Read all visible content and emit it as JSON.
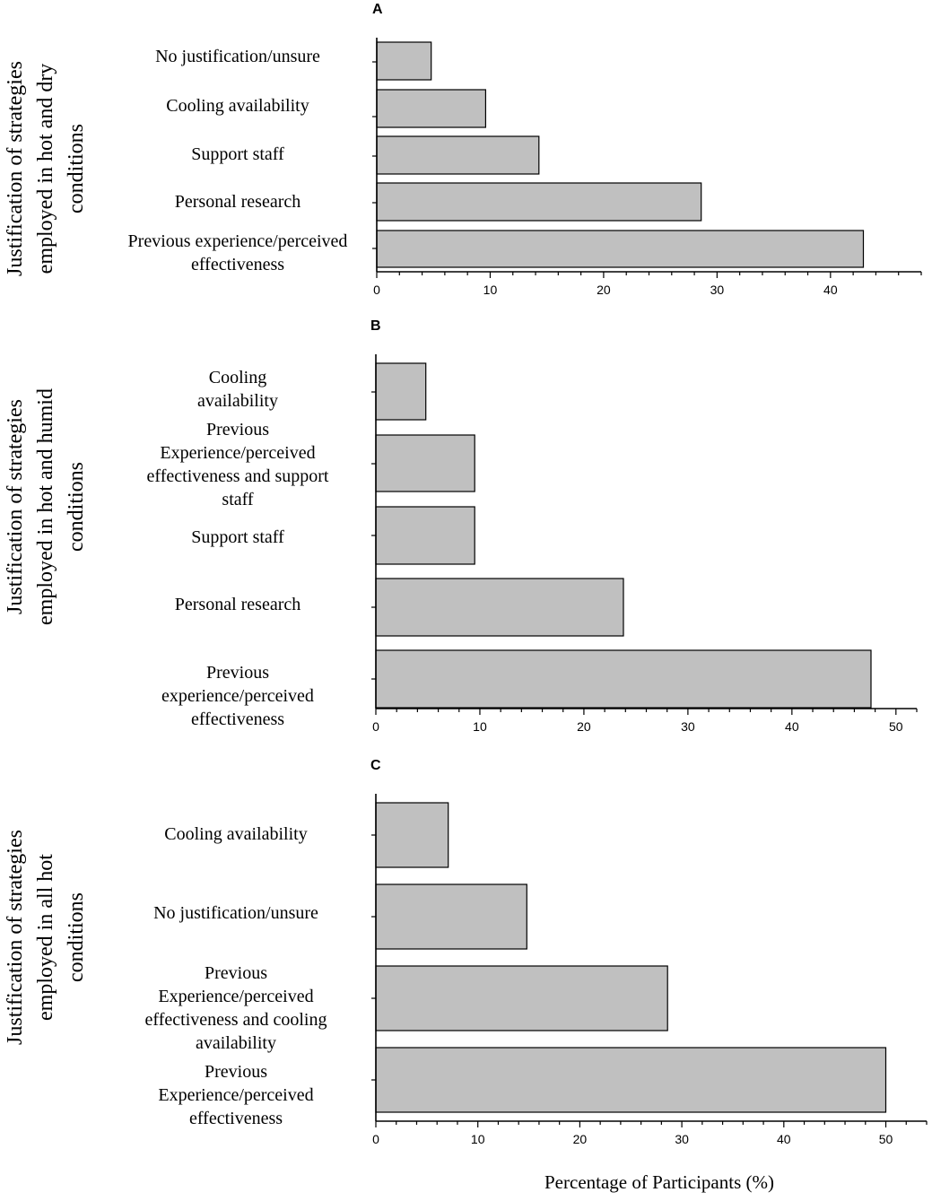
{
  "x_axis_label": "Percentage of Participants (%)",
  "chart_data": [
    {
      "type": "bar",
      "orientation": "horizontal",
      "panel_label": "A",
      "ylabel": [
        "Justification of strategies",
        "employed in  hot and dry",
        "conditions"
      ],
      "categories": [
        [
          "No justification/unsure"
        ],
        [
          "Cooling availability"
        ],
        [
          "Support staff"
        ],
        [
          "Personal research"
        ],
        [
          "Previous experience/perceived",
          "effectiveness"
        ]
      ],
      "values": [
        4.8,
        9.6,
        14.3,
        28.6,
        42.9
      ],
      "xlim": [
        0,
        48
      ],
      "xticks": [
        0,
        10,
        20,
        30,
        40
      ]
    },
    {
      "type": "bar",
      "orientation": "horizontal",
      "panel_label": "B",
      "ylabel": [
        "Justification of strategies",
        "employed in  hot and humid",
        "conditions"
      ],
      "categories": [
        [
          "Cooling",
          "availability"
        ],
        [
          "Previous",
          "Experience/perceived",
          "effectiveness and support",
          "staff"
        ],
        [
          "Support staff"
        ],
        [
          "Personal research"
        ],
        [
          "Previous",
          "experience/perceived",
          "effectiveness"
        ]
      ],
      "values": [
        4.8,
        9.5,
        9.5,
        23.8,
        47.6
      ],
      "xlim": [
        0,
        52
      ],
      "xticks": [
        0,
        10,
        20,
        30,
        40,
        50
      ]
    },
    {
      "type": "bar",
      "orientation": "horizontal",
      "panel_label": "C",
      "ylabel": [
        "Justification of strategies",
        "employed in all hot",
        "conditions"
      ],
      "categories": [
        [
          "Cooling availability"
        ],
        [
          "No justification/unsure"
        ],
        [
          "Previous",
          "Experience/perceived",
          "effectiveness and cooling",
          "availability"
        ],
        [
          "Previous",
          "Experience/perceived",
          "effectiveness"
        ]
      ],
      "values": [
        7.1,
        14.8,
        28.6,
        50.0
      ],
      "xlim": [
        0,
        54
      ],
      "xticks": [
        0,
        10,
        20,
        30,
        40,
        50
      ]
    }
  ]
}
